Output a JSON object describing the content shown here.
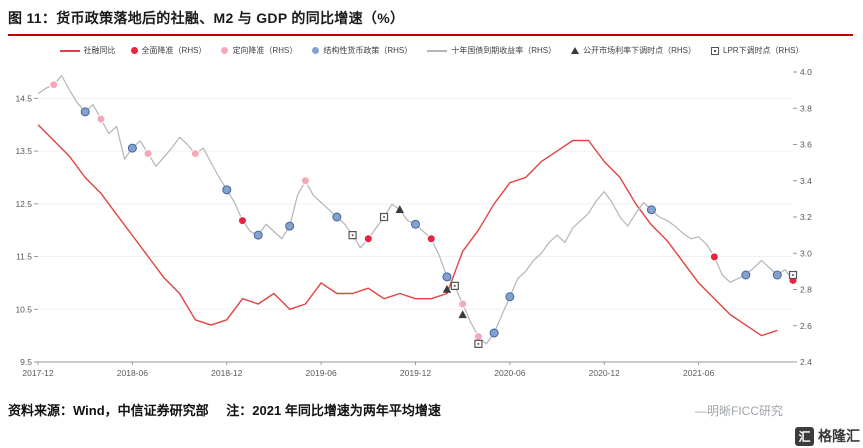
{
  "page": {
    "title": "图 11：货币政策落地后的社融、M2 与 GDP 的同比增速（%）",
    "footer": {
      "source": "资料来源：Wind，中信证券研究部",
      "note": "注：2021 年同比增速为两年平均增速",
      "watermark": "—明晰FICC研究",
      "logo_text": "格隆汇",
      "logo_icon_char": "汇"
    }
  },
  "colors": {
    "title_rule": "#c00000",
    "grid": "#f0f0f0",
    "axis": "#999999",
    "tick_text": "#595959"
  },
  "chart_data": {
    "type": "line",
    "title": "货币政策落地后的社融、M2 与 GDP 的同比增速（%）",
    "x_axis": {
      "start": "2017-12",
      "end": "2021-12",
      "total_months": 48,
      "ticks": [
        {
          "m": 0,
          "label": "2017-12"
        },
        {
          "m": 6,
          "label": "2018-06"
        },
        {
          "m": 12,
          "label": "2018-12"
        },
        {
          "m": 18,
          "label": "2019-06"
        },
        {
          "m": 24,
          "label": "2019-12"
        },
        {
          "m": 30,
          "label": "2020-06"
        },
        {
          "m": 36,
          "label": "2020-12"
        },
        {
          "m": 42,
          "label": "2021-06"
        }
      ]
    },
    "y_left": {
      "min": 9.5,
      "max": 15.0,
      "ticks": [
        9.5,
        10.5,
        11.5,
        12.5,
        13.5,
        14.5
      ]
    },
    "y_right": {
      "min": 2.4,
      "max": 4.0,
      "ticks": [
        2.4,
        2.6,
        2.8,
        3.0,
        3.2,
        3.4,
        3.6,
        3.8,
        4.0
      ]
    },
    "series": [
      {
        "key": "shr-yoy-line",
        "name": "社融同比",
        "axis": "left",
        "color": "#e04343",
        "width": 1.4,
        "start_month": 0,
        "step_months": 1,
        "values": [
          14.0,
          13.7,
          13.4,
          13.0,
          12.7,
          12.3,
          11.9,
          11.5,
          11.1,
          10.8,
          10.3,
          10.2,
          10.3,
          10.7,
          10.6,
          10.8,
          10.5,
          10.6,
          11.0,
          10.8,
          10.8,
          10.9,
          10.7,
          10.8,
          10.7,
          10.7,
          10.8,
          11.6,
          12.0,
          12.5,
          12.9,
          13.0,
          13.3,
          13.5,
          13.7,
          13.7,
          13.3,
          13.0,
          12.5,
          12.1,
          11.8,
          11.4,
          11.0,
          10.7,
          10.4,
          10.2,
          10.0,
          10.1
        ]
      },
      {
        "key": "cgb10y-yield-line",
        "name": "十年国债到期收益率（RHS）",
        "axis": "right",
        "color": "#b5b5b5",
        "width": 1.2,
        "start_month": 0,
        "step_months": 0.5,
        "values": [
          3.88,
          3.91,
          3.93,
          3.98,
          3.9,
          3.83,
          3.78,
          3.82,
          3.74,
          3.66,
          3.7,
          3.52,
          3.58,
          3.62,
          3.55,
          3.48,
          3.53,
          3.58,
          3.64,
          3.6,
          3.55,
          3.58,
          3.5,
          3.42,
          3.35,
          3.28,
          3.18,
          3.12,
          3.1,
          3.16,
          3.12,
          3.08,
          3.15,
          3.32,
          3.4,
          3.32,
          3.28,
          3.24,
          3.2,
          3.16,
          3.1,
          3.03,
          3.08,
          3.14,
          3.2,
          3.27,
          3.24,
          3.18,
          3.16,
          3.12,
          3.08,
          2.99,
          2.87,
          2.82,
          2.72,
          2.62,
          2.54,
          2.5,
          2.56,
          2.66,
          2.76,
          2.86,
          2.9,
          2.96,
          3.0,
          3.06,
          3.1,
          3.06,
          3.14,
          3.18,
          3.22,
          3.29,
          3.34,
          3.28,
          3.2,
          3.15,
          3.22,
          3.28,
          3.24,
          3.2,
          3.18,
          3.15,
          3.11,
          3.08,
          3.09,
          3.05,
          2.98,
          2.88,
          2.84,
          2.86,
          2.88,
          2.92,
          2.96,
          2.92,
          2.88,
          2.91,
          2.85
        ]
      }
    ],
    "markers": [
      {
        "key": "broad-rrr-cut",
        "name": "全面降准（RHS）",
        "shape": "circle",
        "color": "#e8243f",
        "edge": "#ffffff",
        "points": [
          {
            "m": 13,
            "v": 3.18
          },
          {
            "m": 21,
            "v": 3.08
          },
          {
            "m": 25,
            "v": 3.08
          },
          {
            "m": 43,
            "v": 2.98
          },
          {
            "m": 48,
            "v": 2.85
          }
        ]
      },
      {
        "key": "targeted-rrr-cut",
        "name": "定向降准（RHS）",
        "shape": "circle",
        "color": "#f5a9b8",
        "edge": "#ffffff",
        "points": [
          {
            "m": 1,
            "v": 3.93
          },
          {
            "m": 4,
            "v": 3.74
          },
          {
            "m": 7,
            "v": 3.55
          },
          {
            "m": 10,
            "v": 3.55
          },
          {
            "m": 17,
            "v": 3.4
          },
          {
            "m": 27,
            "v": 2.72
          },
          {
            "m": 28,
            "v": 2.54
          }
        ]
      },
      {
        "key": "structural-policy",
        "name": "结构性货币政策（RHS）",
        "shape": "circle",
        "color": "#84a2cc",
        "edge": "#3f64a0",
        "points": [
          {
            "m": 3,
            "v": 3.78
          },
          {
            "m": 6,
            "v": 3.58
          },
          {
            "m": 12,
            "v": 3.35
          },
          {
            "m": 14,
            "v": 3.1
          },
          {
            "m": 16,
            "v": 3.15
          },
          {
            "m": 19,
            "v": 3.2
          },
          {
            "m": 24,
            "v": 3.16
          },
          {
            "m": 26,
            "v": 2.87
          },
          {
            "m": 29,
            "v": 2.56
          },
          {
            "m": 30,
            "v": 2.76
          },
          {
            "m": 39,
            "v": 3.24
          },
          {
            "m": 45,
            "v": 2.88
          },
          {
            "m": 47,
            "v": 2.88
          }
        ]
      },
      {
        "key": "omo-rate-cut",
        "name": "公开市场利率下调时点（RHS）",
        "shape": "triangle",
        "color": "#3a3a3a",
        "points": [
          {
            "m": 23,
            "v": 3.24
          },
          {
            "m": 26,
            "v": 2.8
          },
          {
            "m": 27,
            "v": 2.66
          }
        ]
      },
      {
        "key": "lpr-cut",
        "name": "LPR下调时点（RHS）",
        "shape": "square",
        "color": "#555555",
        "points": [
          {
            "m": 20,
            "v": 3.1
          },
          {
            "m": 22,
            "v": 3.2
          },
          {
            "m": 26.5,
            "v": 2.82
          },
          {
            "m": 28,
            "v": 2.5
          },
          {
            "m": 48,
            "v": 2.88
          }
        ]
      }
    ],
    "legend": [
      {
        "key": "shr-yoy",
        "label": "社融同比",
        "symbol": "line",
        "color": "#e04343"
      },
      {
        "key": "broad-rrr-cut",
        "label": "全面降准（RHS）",
        "symbol": "dot",
        "color": "#e8243f"
      },
      {
        "key": "targeted-rrr-cut",
        "label": "定向降准（RHS）",
        "symbol": "dot",
        "color": "#f5a9b8"
      },
      {
        "key": "structural-policy",
        "label": "结构性货币政策（RHS）",
        "symbol": "dot",
        "color": "#84a2cc"
      },
      {
        "key": "cgb10y-yield",
        "label": "十年国债到期收益率（RHS）",
        "symbol": "line",
        "color": "#b5b5b5"
      },
      {
        "key": "omo-rate-cut",
        "label": "公开市场利率下调时点（RHS）",
        "symbol": "triangle",
        "color": "#3a3a3a"
      },
      {
        "key": "lpr-cut",
        "label": "LPR下调时点（RHS）",
        "symbol": "square",
        "color": "#555555"
      }
    ],
    "legend_position": "top",
    "grid": "horizontal-faint"
  }
}
